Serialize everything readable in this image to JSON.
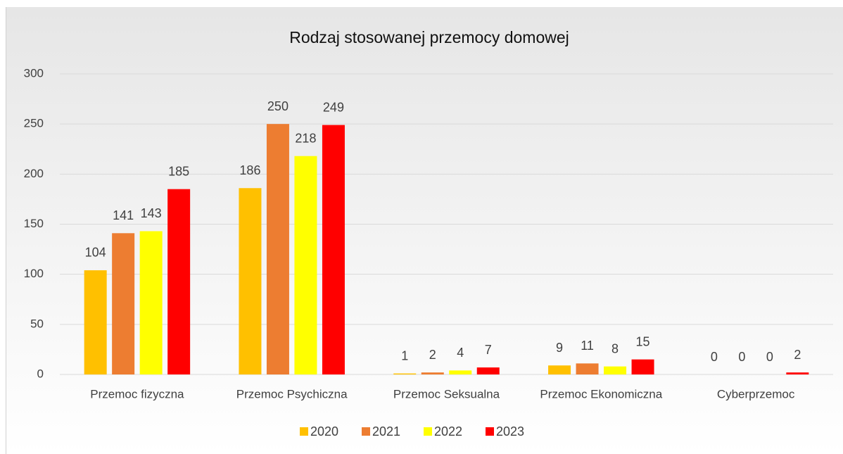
{
  "chart_data": {
    "type": "bar",
    "title": "Rodzaj stosowanej przemocy domowej",
    "categories": [
      "Przemoc fizyczna",
      "Przemoc Psychiczna",
      "Przemoc Seksualna",
      "Przemoc Ekonomiczna",
      "Cyberprzemoc"
    ],
    "series": [
      {
        "name": "2020",
        "color": "#ffc000",
        "values": [
          104,
          186,
          1,
          9,
          0
        ]
      },
      {
        "name": "2021",
        "color": "#ed7d31",
        "values": [
          141,
          250,
          2,
          11,
          0
        ]
      },
      {
        "name": "2022",
        "color": "#ffff00",
        "values": [
          143,
          218,
          4,
          8,
          0
        ]
      },
      {
        "name": "2023",
        "color": "#ff0000",
        "values": [
          185,
          249,
          7,
          15,
          2
        ]
      }
    ],
    "ylim": [
      0,
      300
    ],
    "yticks": [
      0,
      50,
      100,
      150,
      200,
      250,
      300
    ],
    "grid": true,
    "legend": "bottom"
  }
}
